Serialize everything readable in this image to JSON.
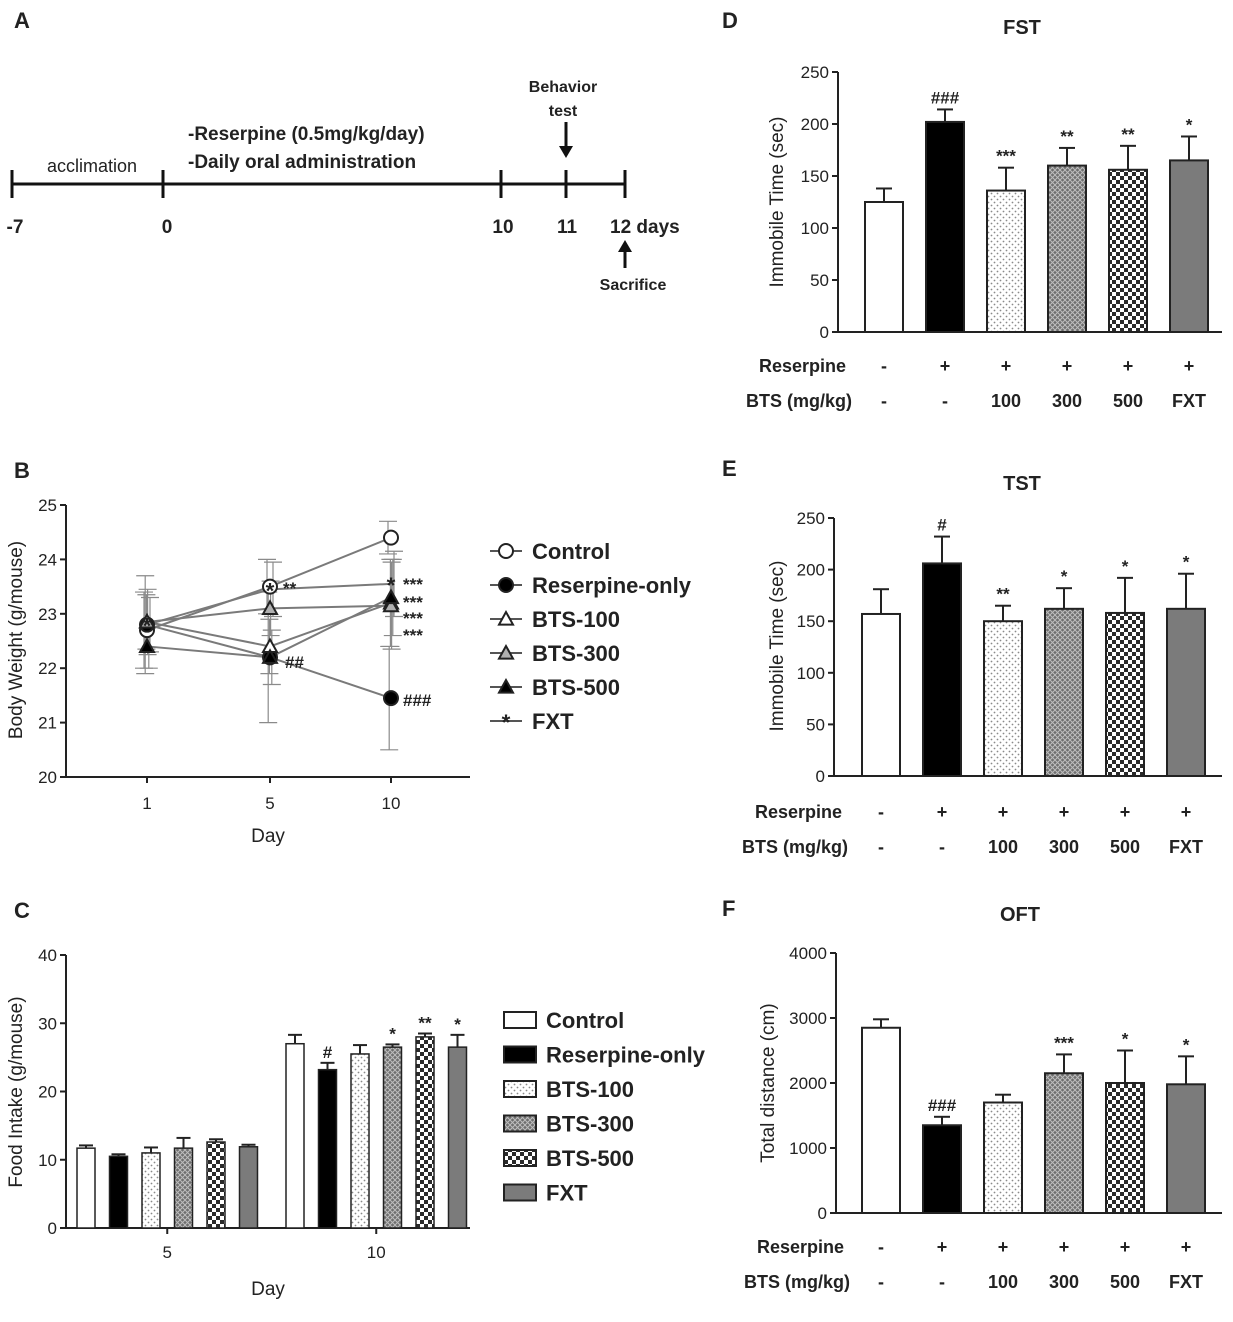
{
  "colors": {
    "ink": "#222222",
    "line": "#6f6f6f",
    "reserpine": "#000000",
    "gray": "#7b7b7b"
  },
  "chart_data": [
    {
      "panel": "A",
      "type": "timeline",
      "marks": [
        "-7",
        "0",
        "10",
        "11",
        "12 days"
      ],
      "phase_before": "acclimation",
      "treatment": [
        "-Reserpine (0.5mg/kg/day)",
        "-Daily oral administration"
      ],
      "event_top": [
        "Behavior",
        "test"
      ],
      "event_bottom": "Sacrifice"
    },
    {
      "panel": "B",
      "type": "line",
      "xlabel": "Day",
      "ylabel": "Body Weight (g/mouse)",
      "x": [
        1,
        5,
        10
      ],
      "ylim": [
        20,
        25
      ],
      "yticks": [
        "20",
        "21",
        "22",
        "23",
        "24",
        "25"
      ],
      "series": [
        {
          "name": "Control",
          "marker": "circle-open",
          "values": [
            22.7,
            23.5,
            24.4
          ],
          "err": [
            0.7,
            0.5,
            0.3
          ]
        },
        {
          "name": "Reserpine-only",
          "marker": "circle-filled",
          "values": [
            22.8,
            22.2,
            21.45
          ],
          "err": [
            0.9,
            1.2,
            0.95
          ]
        },
        {
          "name": "BTS-100",
          "marker": "triangle-open",
          "values": [
            22.85,
            22.4,
            23.2
          ],
          "err": [
            0.5,
            0.5,
            0.8
          ]
        },
        {
          "name": "BTS-300",
          "marker": "triangle-gray",
          "values": [
            22.85,
            23.1,
            23.15
          ],
          "err": [
            0.6,
            0.5,
            0.8
          ]
        },
        {
          "name": "BTS-500",
          "marker": "triangle-filled",
          "values": [
            22.4,
            22.2,
            23.3
          ],
          "err": [
            0.4,
            0.5,
            0.7
          ]
        },
        {
          "name": "FXT",
          "marker": "star",
          "values": [
            22.8,
            23.45,
            23.55
          ],
          "err": [
            0.5,
            0.5,
            0.6
          ]
        }
      ],
      "annotations": [
        "**",
        "##",
        "***",
        "***",
        "***",
        "***",
        "###"
      ]
    },
    {
      "panel": "C",
      "type": "bar",
      "xlabel": "Day",
      "ylabel": "Food Intake (g/mouse)",
      "categories": [
        "5",
        "10"
      ],
      "ylim": [
        0,
        40
      ],
      "yticks": [
        "0",
        "10",
        "20",
        "30",
        "40"
      ],
      "series": [
        {
          "name": "Control",
          "values": [
            11.7,
            27.0
          ],
          "err": [
            0.4,
            1.3
          ],
          "ann": [
            "",
            ""
          ]
        },
        {
          "name": "Reserpine-only",
          "values": [
            10.5,
            23.2
          ],
          "err": [
            0.3,
            1.0
          ],
          "ann": [
            "",
            "#"
          ]
        },
        {
          "name": "BTS-100",
          "values": [
            11.0,
            25.5
          ],
          "err": [
            0.8,
            1.3
          ],
          "ann": [
            "",
            ""
          ]
        },
        {
          "name": "BTS-300",
          "values": [
            11.7,
            26.5
          ],
          "err": [
            1.5,
            0.4
          ],
          "ann": [
            "",
            "*"
          ]
        },
        {
          "name": "BTS-500",
          "values": [
            12.6,
            28.0
          ],
          "err": [
            0.4,
            0.5
          ],
          "ann": [
            "",
            "**"
          ]
        },
        {
          "name": "FXT",
          "values": [
            11.9,
            26.5
          ],
          "err": [
            0.3,
            1.8
          ],
          "ann": [
            "",
            "*"
          ]
        }
      ]
    },
    {
      "panel": "D",
      "type": "bar",
      "title": "FST",
      "ylabel": "Immobile Time (sec)",
      "ylim": [
        0,
        250
      ],
      "yticks": [
        "0",
        "50",
        "100",
        "150",
        "200",
        "250"
      ],
      "values": [
        125,
        202,
        136,
        160,
        156,
        165
      ],
      "err": [
        13,
        12,
        22,
        17,
        23,
        23
      ],
      "ann": [
        "",
        "###",
        "***",
        "**",
        "**",
        "*"
      ],
      "row1_label": "Reserpine",
      "row1": [
        "-",
        "+",
        "+",
        "+",
        "+",
        "+"
      ],
      "row2_label": "BTS (mg/kg)",
      "row2": [
        "-",
        "-",
        "100",
        "300",
        "500",
        "FXT"
      ]
    },
    {
      "panel": "E",
      "type": "bar",
      "title": "TST",
      "ylabel": "Immobile Time (sec)",
      "ylim": [
        0,
        250
      ],
      "yticks": [
        "0",
        "50",
        "100",
        "150",
        "200",
        "250"
      ],
      "values": [
        157,
        206,
        150,
        162,
        158,
        162
      ],
      "err": [
        24,
        26,
        15,
        20,
        34,
        34
      ],
      "ann": [
        "",
        "#",
        "**",
        "*",
        "*",
        "*"
      ],
      "row1_label": "Reserpine",
      "row1": [
        "-",
        "+",
        "+",
        "+",
        "+",
        "+"
      ],
      "row2_label": "BTS (mg/kg)",
      "row2": [
        "-",
        "-",
        "100",
        "300",
        "500",
        "FXT"
      ]
    },
    {
      "panel": "F",
      "type": "bar",
      "title": "OFT",
      "ylabel": "Total distance (cm)",
      "ylim": [
        0,
        4000
      ],
      "yticks": [
        "0",
        "1000",
        "2000",
        "3000",
        "4000"
      ],
      "values": [
        2850,
        1350,
        1700,
        2150,
        2000,
        1980
      ],
      "err": [
        130,
        130,
        120,
        290,
        500,
        430
      ],
      "ann": [
        "",
        "###",
        "",
        "***",
        "*",
        "*"
      ],
      "row1_label": "Reserpine",
      "row1": [
        "-",
        "+",
        "+",
        "+",
        "+",
        "+"
      ],
      "row2_label": "BTS (mg/kg)",
      "row2": [
        "-",
        "-",
        "100",
        "300",
        "500",
        "FXT"
      ]
    }
  ]
}
